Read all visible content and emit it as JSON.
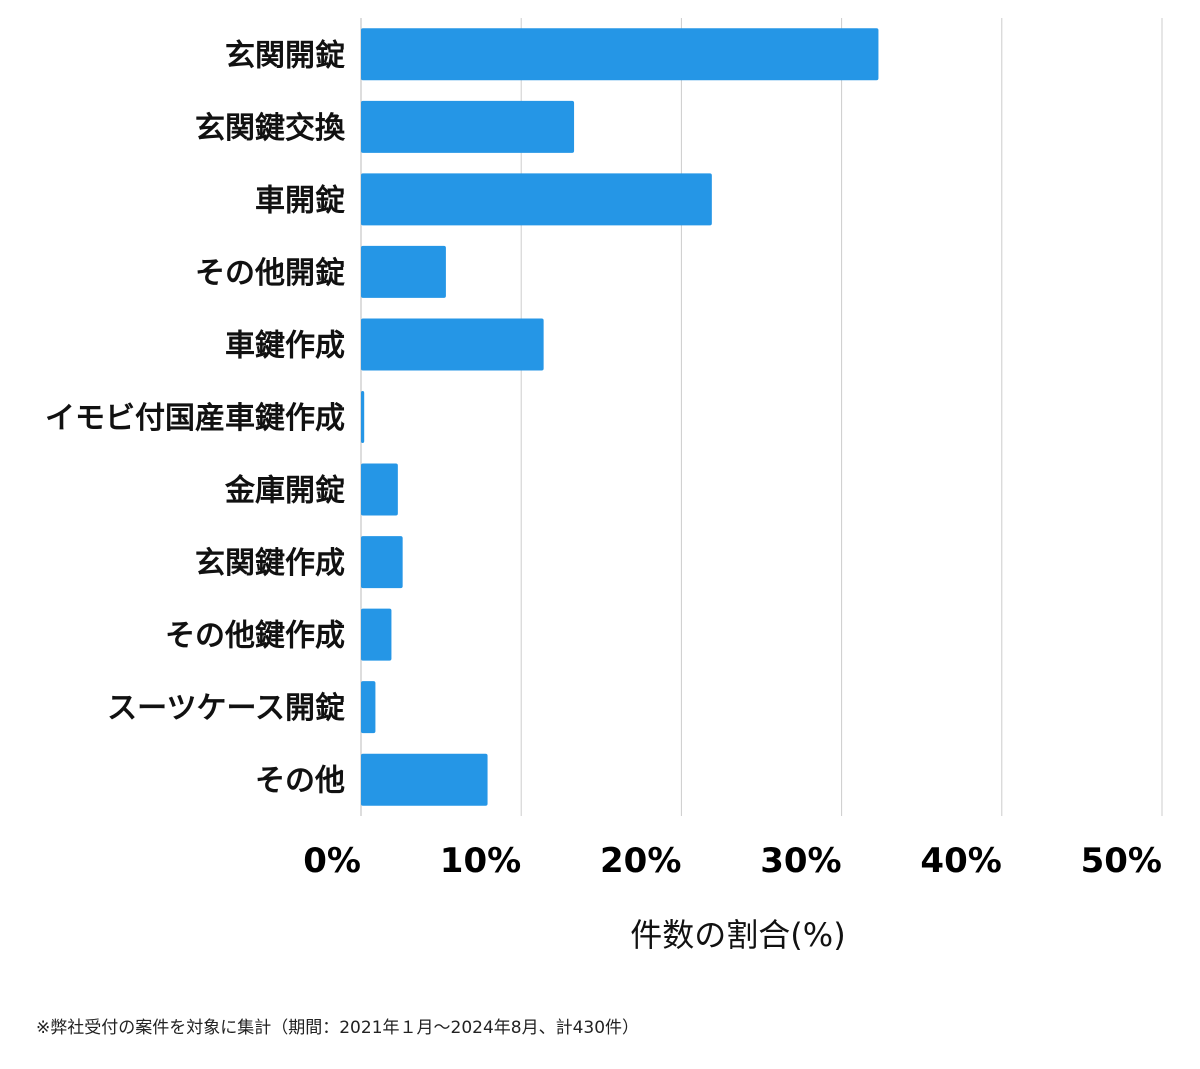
{
  "chart_data": {
    "type": "bar",
    "orientation": "horizontal",
    "categories": [
      "玄関開錠",
      "玄関鍵交換",
      "車開錠",
      "その他開錠",
      "車鍵作成",
      "イモビ付国産車鍵作成",
      "金庫開錠",
      "玄関鍵作成",
      "その他鍵作成",
      "スーツケース開錠",
      "その他"
    ],
    "values": [
      32.3,
      13.3,
      21.9,
      5.3,
      11.4,
      0.2,
      2.3,
      2.6,
      1.9,
      0.9,
      7.9
    ],
    "xlim": [
      0,
      50
    ],
    "ticks": [
      0,
      10,
      20,
      30,
      40,
      50
    ],
    "tick_labels": [
      "0%",
      "10%",
      "20%",
      "30%",
      "40%",
      "50%"
    ],
    "xlabel": "件数の割合(%)",
    "ylabel": "",
    "title": "",
    "grid": true,
    "bar_color": "#2596e6",
    "grid_color": "#cccccc"
  },
  "footnote": "※弊社受付の案件を対象に集計（期間：2021年１月〜2024年8月、計430件）"
}
